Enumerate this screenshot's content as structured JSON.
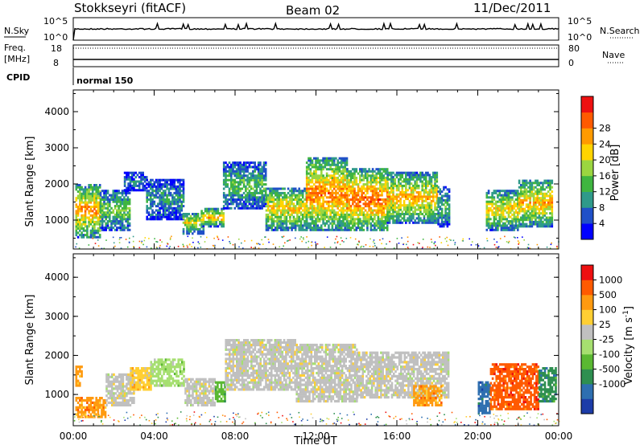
{
  "header": {
    "station": "Stokkseyri (fitACF)",
    "beam": "Beam 02",
    "date": "11/Dec/2011"
  },
  "top_panels": {
    "nsky_label": "N.Sky",
    "nsearch_label": "N.Search",
    "noise_ticks_left": [
      "10^5",
      "10^0"
    ],
    "noise_ticks_right": [
      "10^5",
      "10^0"
    ],
    "freq_label": "Freq.",
    "freq_unit": "[MHz]",
    "freq_ticks": [
      "18",
      "8"
    ],
    "nave_label": "Nave",
    "nave_ticks": [
      "80",
      "0"
    ],
    "cpid_label": "CPID",
    "cpid_value": "normal 150"
  },
  "chart_data": [
    {
      "type": "heatmap",
      "name": "power",
      "ylabel": "Slant Range [km]",
      "ylim": [
        200,
        4600
      ],
      "yticks": [
        "1000",
        "2000",
        "3000",
        "4000"
      ],
      "xlim": [
        "00:00",
        "24:00"
      ],
      "xticks": [
        "00:00",
        "04:00",
        "08:00",
        "12:00",
        "16:00",
        "20:00",
        "00:00"
      ],
      "colorbar": {
        "label": "Power [dB]",
        "ticks": [
          "4",
          "8",
          "12",
          "16",
          "20",
          "24",
          "28"
        ],
        "colors": [
          "#0000ff",
          "#2050c8",
          "#2f9a8a",
          "#3fb540",
          "#9bd640",
          "#ffd400",
          "#ff9a00",
          "#ff5a00",
          "#ee1010"
        ]
      },
      "regions": [
        {
          "t0": 0.1,
          "t1": 1.3,
          "r0": 500,
          "r1": 2000,
          "level": 0.75
        },
        {
          "t0": 1.3,
          "t1": 2.8,
          "r0": 700,
          "r1": 1800,
          "level": 0.45
        },
        {
          "t0": 2.5,
          "t1": 3.6,
          "r0": 1800,
          "r1": 2300,
          "level": 0.25
        },
        {
          "t0": 3.6,
          "t1": 5.4,
          "r0": 1000,
          "r1": 2100,
          "level": 0.3
        },
        {
          "t0": 5.4,
          "t1": 6.4,
          "r0": 600,
          "r1": 1200,
          "level": 0.6
        },
        {
          "t0": 6.3,
          "t1": 7.4,
          "r0": 800,
          "r1": 1300,
          "level": 0.7
        },
        {
          "t0": 7.4,
          "t1": 9.5,
          "r0": 1300,
          "r1": 2600,
          "level": 0.4
        },
        {
          "t0": 9.5,
          "t1": 11.5,
          "r0": 700,
          "r1": 1900,
          "level": 0.65
        },
        {
          "t0": 11.5,
          "t1": 13.5,
          "r0": 700,
          "r1": 2700,
          "level": 0.8
        },
        {
          "t0": 13.5,
          "t1": 15.5,
          "r0": 700,
          "r1": 2400,
          "level": 0.85
        },
        {
          "t0": 15.5,
          "t1": 18.0,
          "r0": 900,
          "r1": 2300,
          "level": 0.7
        },
        {
          "t0": 18.0,
          "t1": 18.6,
          "r0": 800,
          "r1": 1900,
          "level": 0.35
        },
        {
          "t0": 20.4,
          "t1": 22.0,
          "r0": 700,
          "r1": 1800,
          "level": 0.65
        },
        {
          "t0": 22.0,
          "t1": 23.7,
          "r0": 800,
          "r1": 2100,
          "level": 0.7
        }
      ]
    },
    {
      "type": "heatmap",
      "name": "velocity",
      "ylabel": "Slant Range [km]",
      "ylim": [
        200,
        4600
      ],
      "yticks": [
        "1000",
        "2000",
        "3000",
        "4000"
      ],
      "xlabel": "Time UT",
      "xlim": [
        "00:00",
        "24:00"
      ],
      "xticks": [
        "00:00",
        "04:00",
        "08:00",
        "12:00",
        "16:00",
        "20:00",
        "00:00"
      ],
      "colorbar": {
        "label": "Velocity [m s^-1]",
        "ticks": [
          "1000",
          "500",
          "100",
          "25",
          "-25",
          "-100",
          "-500",
          "-1000"
        ],
        "colors": [
          "#1c3ca8",
          "#2e6fb0",
          "#2e8f50",
          "#5ab832",
          "#a6df70",
          "#c0c0c0",
          "#ffcf33",
          "#ff9a10",
          "#ff5a00",
          "#ee1010"
        ]
      },
      "regions": [
        {
          "t0": 0.1,
          "t1": 1.6,
          "r0": 400,
          "r1": 900,
          "color_index": 7
        },
        {
          "t0": 0.1,
          "t1": 0.4,
          "r0": 1200,
          "r1": 1700,
          "color_index": 7
        },
        {
          "t0": 1.6,
          "t1": 3.0,
          "r0": 700,
          "r1": 1500,
          "color_index": 5
        },
        {
          "t0": 2.8,
          "t1": 3.8,
          "r0": 1100,
          "r1": 1700,
          "color_index": 6
        },
        {
          "t0": 3.8,
          "t1": 5.5,
          "r0": 1200,
          "r1": 1900,
          "color_index": 4
        },
        {
          "t0": 5.5,
          "t1": 7.0,
          "r0": 700,
          "r1": 1400,
          "color_index": 5
        },
        {
          "t0": 7.0,
          "t1": 7.5,
          "r0": 800,
          "r1": 1300,
          "color_index": 3
        },
        {
          "t0": 7.5,
          "t1": 11.0,
          "r0": 1100,
          "r1": 2400,
          "color_index": 5
        },
        {
          "t0": 11.0,
          "t1": 14.0,
          "r0": 800,
          "r1": 2300,
          "color_index": 5
        },
        {
          "t0": 14.0,
          "t1": 18.5,
          "r0": 900,
          "r1": 2100,
          "color_index": 5
        },
        {
          "t0": 16.8,
          "t1": 18.2,
          "r0": 700,
          "r1": 1200,
          "color_index": 7
        },
        {
          "t0": 20.0,
          "t1": 20.6,
          "r0": 500,
          "r1": 1300,
          "color_index": 1
        },
        {
          "t0": 20.6,
          "t1": 23.0,
          "r0": 600,
          "r1": 1800,
          "color_index": 8
        },
        {
          "t0": 23.0,
          "t1": 23.9,
          "r0": 800,
          "r1": 1700,
          "color_index": 2
        }
      ]
    }
  ]
}
